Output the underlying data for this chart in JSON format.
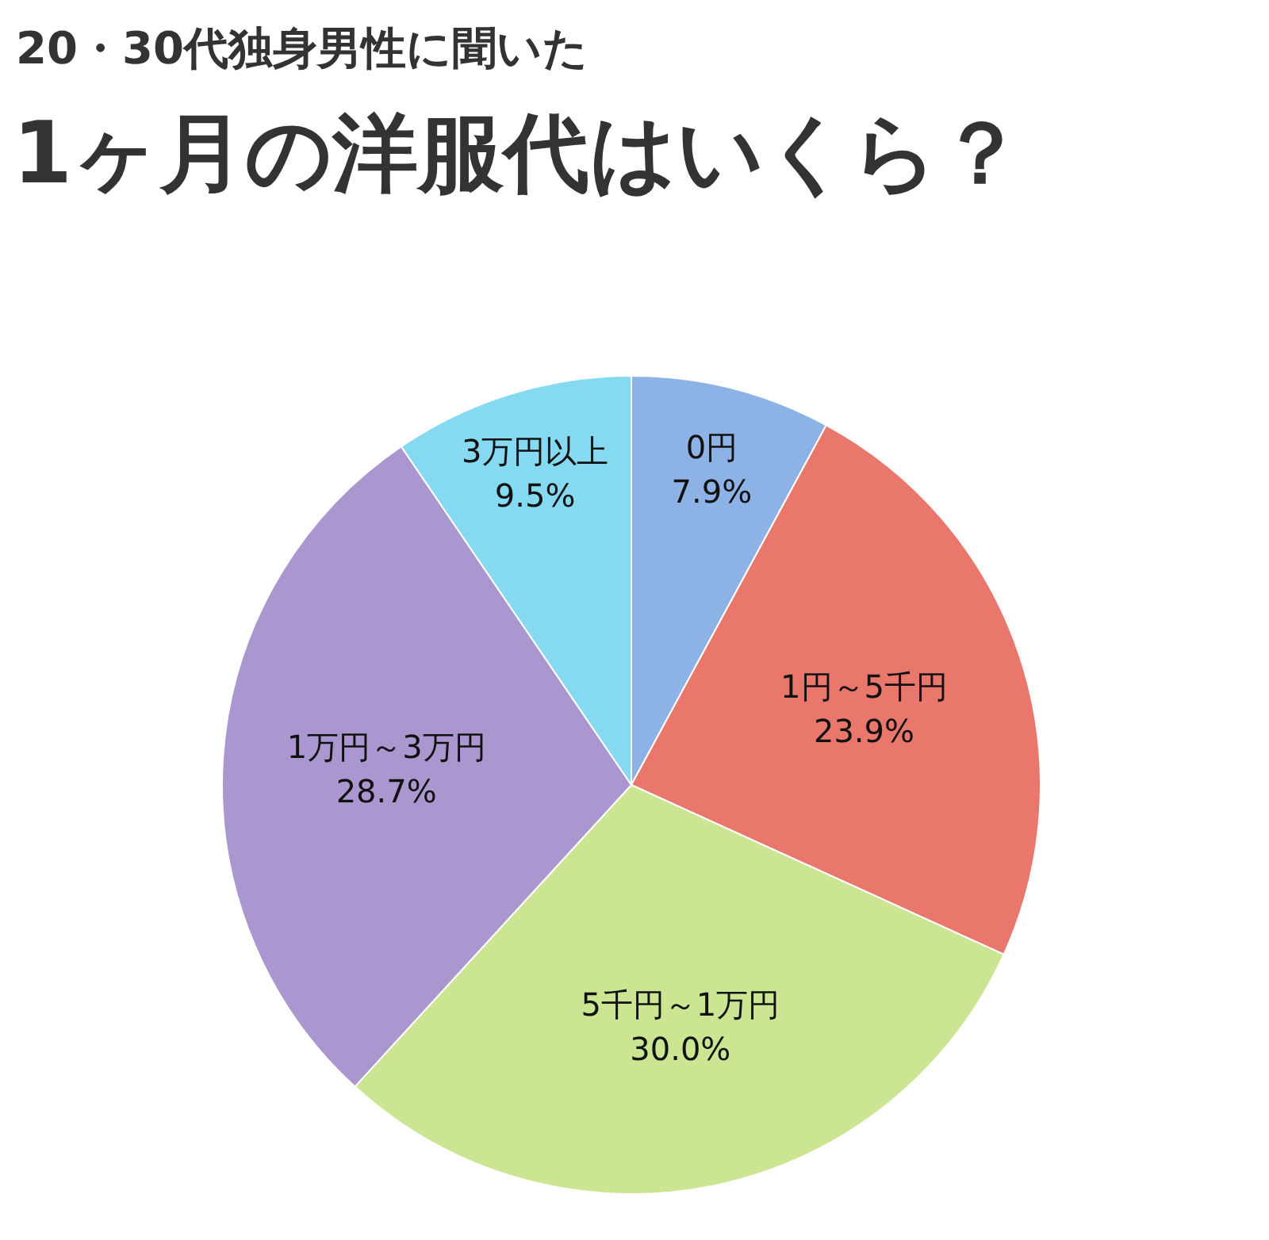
{
  "chart_data": {
    "type": "pie",
    "subtitle": "20・30代独身男性に聞いた",
    "title": "1ヶ月の洋服代はいくら？",
    "categories": [
      "0円",
      "1円～5千円",
      "5千円～1万円",
      "1万円～3万円",
      "3万円以上"
    ],
    "values": [
      7.9,
      23.9,
      30.0,
      28.7,
      9.5
    ],
    "value_labels": [
      "7.9%",
      "23.9%",
      "30.0%",
      "28.7%",
      "9.5%"
    ],
    "colors": [
      "#8db3e6",
      "#e9776c",
      "#cbe593",
      "#ab97d0",
      "#85d9f0"
    ],
    "legend": false
  }
}
